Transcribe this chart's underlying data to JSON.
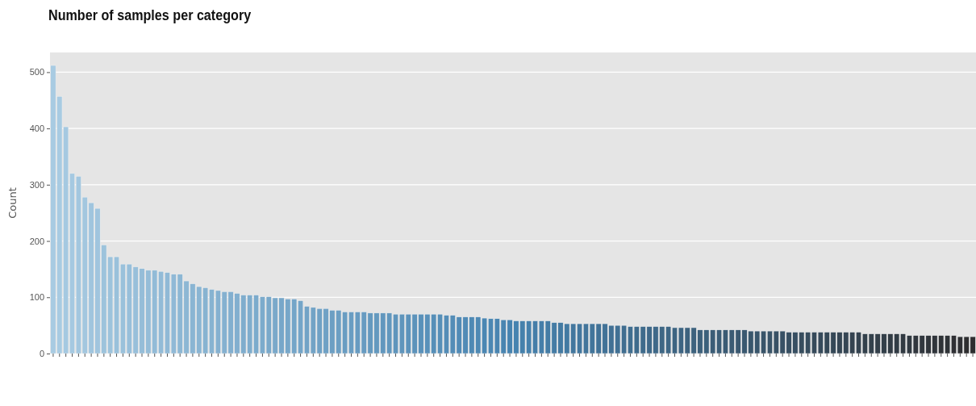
{
  "chart_data": {
    "type": "bar",
    "title": "Number of samples per category",
    "ylabel": "Count",
    "categories": [
      null,
      null,
      null,
      null,
      null,
      null,
      null,
      null,
      null,
      null,
      null,
      null,
      null,
      null,
      null,
      null,
      null,
      null,
      null,
      null,
      null,
      null,
      null,
      null,
      null,
      null,
      null,
      null,
      null,
      null,
      null,
      null,
      null,
      null,
      null,
      null,
      null,
      null,
      null,
      null,
      null,
      null,
      null,
      null,
      null,
      null,
      null,
      null,
      null,
      null,
      null,
      null,
      null,
      null,
      null,
      null,
      null,
      null,
      null,
      null,
      null,
      null,
      null,
      null,
      null,
      null,
      null,
      null,
      null,
      null,
      null,
      null,
      null,
      null,
      null,
      null,
      null,
      null,
      null,
      null,
      null,
      null,
      null,
      null,
      null,
      null,
      null,
      null,
      null,
      null,
      null,
      null,
      null,
      null,
      null,
      null,
      null,
      null,
      null,
      null,
      null,
      null,
      null,
      null,
      null,
      null,
      null,
      null,
      null,
      null,
      null,
      null,
      null,
      null,
      null,
      null,
      null,
      null,
      null,
      null,
      null,
      null,
      null,
      null,
      null,
      null,
      null,
      null,
      null,
      null,
      null,
      null,
      null,
      null,
      null,
      null,
      null,
      null,
      null,
      null,
      null,
      null,
      null,
      null,
      null,
      null
    ],
    "values": [
      512,
      457,
      403,
      320,
      315,
      278,
      268,
      258,
      193,
      172,
      172,
      159,
      159,
      154,
      151,
      148,
      148,
      146,
      144,
      141,
      141,
      129,
      124,
      119,
      117,
      114,
      112,
      110,
      110,
      107,
      104,
      104,
      104,
      101,
      101,
      99,
      99,
      97,
      97,
      94,
      84,
      82,
      80,
      80,
      77,
      77,
      74,
      74,
      74,
      74,
      72,
      72,
      72,
      72,
      70,
      70,
      70,
      70,
      70,
      70,
      70,
      70,
      68,
      68,
      65,
      65,
      65,
      65,
      63,
      62,
      62,
      60,
      60,
      58,
      58,
      58,
      58,
      58,
      58,
      55,
      55,
      53,
      53,
      53,
      53,
      53,
      53,
      53,
      50,
      50,
      50,
      48,
      48,
      48,
      48,
      48,
      48,
      48,
      46,
      46,
      46,
      46,
      42,
      42,
      42,
      42,
      42,
      42,
      42,
      42,
      40,
      40,
      40,
      40,
      40,
      40,
      38,
      38,
      38,
      38,
      38,
      38,
      38,
      38,
      38,
      38,
      38,
      38,
      35,
      35,
      35,
      35,
      35,
      35,
      35,
      32,
      32,
      32,
      32,
      32,
      32,
      32,
      32,
      30,
      30,
      30
    ],
    "colors": [
      "#a8cbe2",
      "#a8cbe2",
      "#a5c9e1",
      "#a5c9e1",
      "#a3c7df",
      "#a3c7df",
      "#a0c5de",
      "#a0c5de",
      "#9dc3dc",
      "#9dc3dc",
      "#9ac1db",
      "#9ac1db",
      "#98bfda",
      "#98bfda",
      "#95bdd8",
      "#95bdd8",
      "#92bbd7",
      "#92bbd7",
      "#90b9d6",
      "#90b9d6",
      "#8db7d4",
      "#8db7d4",
      "#8ab5d3",
      "#8ab5d3",
      "#87b3d1",
      "#87b3d1",
      "#85b1d0",
      "#85b1d0",
      "#82afcf",
      "#82afcf",
      "#7fadcd",
      "#7fadcd",
      "#7cabcc",
      "#7cabcc",
      "#7aa9ca",
      "#7aa9ca",
      "#77a7c9",
      "#77a7c9",
      "#74a5c8",
      "#74a5c8",
      "#72a3c6",
      "#72a3c6",
      "#6fa1c5",
      "#6fa1c5",
      "#6c9fc3",
      "#6c9fc3",
      "#699dc2",
      "#699dc2",
      "#679bc1",
      "#679bc1",
      "#6499bf",
      "#6499bf",
      "#6197be",
      "#6197be",
      "#5f95bc",
      "#5f95bc",
      "#5c93bb",
      "#5c93bb",
      "#5991ba",
      "#5991ba",
      "#568fb8",
      "#568fb8",
      "#548db7",
      "#548db7",
      "#518bb6",
      "#518bb6",
      "#4e89b4",
      "#4e89b4",
      "#4b87b3",
      "#4b87b3",
      "#4985b1",
      "#4985b1",
      "#4683b0",
      "#4683b0",
      "#4581ac",
      "#4581ac",
      "#457ea9",
      "#457ea9",
      "#447ca5",
      "#447ca5",
      "#437aa2",
      "#437aa2",
      "#43779e",
      "#43779e",
      "#42759b",
      "#42759b",
      "#417297",
      "#417297",
      "#417094",
      "#417094",
      "#406e90",
      "#406e90",
      "#3f6b8c",
      "#3f6b8c",
      "#3f6989",
      "#3f6989",
      "#3e6785",
      "#3e6785",
      "#3d6482",
      "#3d6482",
      "#3d627e",
      "#3d627e",
      "#3c607b",
      "#3c607b",
      "#3b5d77",
      "#3b5d77",
      "#3b5b74",
      "#3b5b74",
      "#3a5870",
      "#3a5870",
      "#39566c",
      "#39566c",
      "#395469",
      "#395469",
      "#385165",
      "#385165",
      "#374f62",
      "#374f62",
      "#374d5e",
      "#374d5e",
      "#364a5b",
      "#364a5b",
      "#354857",
      "#354857",
      "#354654",
      "#354654",
      "#344350",
      "#344350",
      "#33414c",
      "#33414c",
      "#333f49",
      "#333f49",
      "#323c45",
      "#323c45",
      "#313a42",
      "#313a42",
      "#31373e",
      "#31373e",
      "#30353b",
      "#30353b",
      "#2f3337",
      "#2f3337",
      "#2f3034",
      "#2f3034",
      "#2e2e30",
      "#2e2e30"
    ],
    "ylim": [
      0,
      535
    ],
    "yticks": [
      0,
      100,
      200,
      300,
      400,
      500
    ],
    "grid": "y"
  }
}
